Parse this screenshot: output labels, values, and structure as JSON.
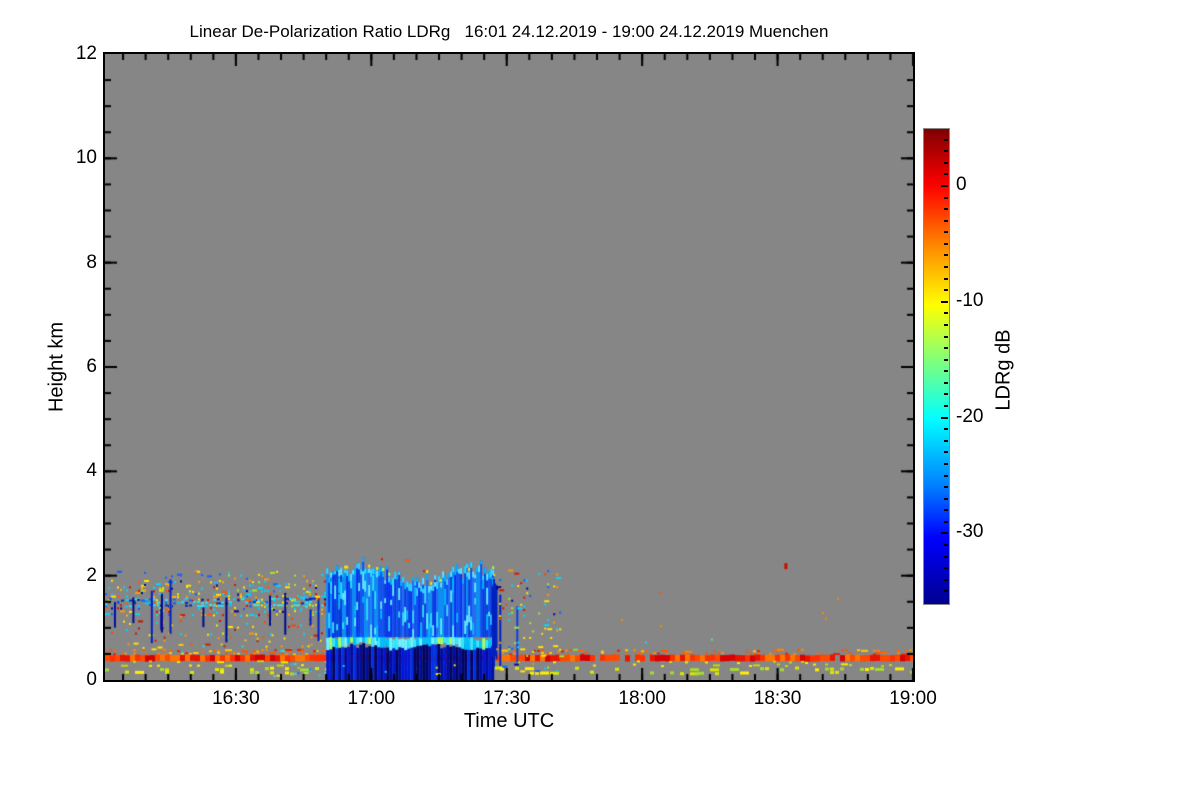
{
  "chart_data": {
    "type": "heatmap",
    "title": "Linear De-Polarization Ratio LDRg   16:01 24.12.2019 - 19:00 24.12.2019 Muenchen",
    "instrument_quantity": "Linear De-Polarization Ratio LDRg",
    "time_start": "16:01 24.12.2019",
    "time_end": "19:00 24.12.2019",
    "site": "Muenchen",
    "xlabel": "Time UTC",
    "ylabel": "Height km",
    "no_data_color": "#868686",
    "frame_color": "#000000",
    "x_axis": {
      "start_label": "16:01",
      "end_label": "19:00",
      "total_minutes": 179,
      "ticks": [
        {
          "label": "16:30",
          "minutes": 29
        },
        {
          "label": "17:00",
          "minutes": 59
        },
        {
          "label": "17:30",
          "minutes": 89
        },
        {
          "label": "18:00",
          "minutes": 119
        },
        {
          "label": "18:30",
          "minutes": 149
        },
        {
          "label": "19:00",
          "minutes": 179
        }
      ],
      "minor_start_minutes": 4,
      "minor_step_minutes": 5
    },
    "y_axis": {
      "min": 0,
      "max": 12,
      "unit": "km",
      "ticks": [
        0,
        2,
        4,
        6,
        8,
        10,
        12
      ],
      "minor_step": 0.5
    },
    "colorbar": {
      "label": "LDRg dB",
      "max_db": 5,
      "min_db": -36,
      "ticks": [
        0,
        -10,
        -20,
        -30
      ],
      "minor_step_db": 1,
      "gradient_stops": [
        [
          "0%",
          "#7f0000"
        ],
        [
          "12%",
          "#ff0000"
        ],
        [
          "25%",
          "#ff8c00"
        ],
        [
          "37%",
          "#ffff00"
        ],
        [
          "49%",
          "#7dff7d"
        ],
        [
          "61%",
          "#00ffff"
        ],
        [
          "75%",
          "#0080ff"
        ],
        [
          "86%",
          "#0000ff"
        ],
        [
          "100%",
          "#00008f"
        ]
      ]
    },
    "features": [
      {
        "id": "pre-cloud-speckle-upper",
        "type": "speckles",
        "t": [
          0,
          53
        ],
        "h": [
          1.25,
          1.9
        ],
        "density": 0.3,
        "cell": [
          3,
          3
        ],
        "colors": [
          "#ffe400",
          "#ffe400",
          "#00d8ff",
          "#00d8ff",
          "#ff9900",
          "#ff5500",
          "#1560ff",
          "#d81400",
          "#000a90",
          "#a0e838",
          "#ffb000",
          "#30b0ff"
        ]
      },
      {
        "id": "pre-cloud-speckle-top",
        "type": "speckles",
        "t": [
          0,
          53
        ],
        "h": [
          1.9,
          2.08
        ],
        "density": 0.08,
        "cell": [
          3,
          3
        ],
        "colors": [
          "#ffe400",
          "#00d8ff",
          "#ff9900",
          "#1560ff",
          "#a0e838"
        ]
      },
      {
        "id": "pre-cloud-layer-cyan",
        "type": "speckles",
        "t": [
          0,
          53
        ],
        "h": [
          1.4,
          1.56
        ],
        "density": 0.5,
        "cell": [
          4,
          3
        ],
        "colors": [
          "#00ccff",
          "#28e0ff",
          "#1060ff",
          "#0030c0",
          "#40e8d0"
        ]
      },
      {
        "id": "pre-cloud-speckle-mid",
        "type": "speckles",
        "t": [
          0,
          53
        ],
        "h": [
          0.88,
          1.25
        ],
        "density": 0.1,
        "cell": [
          3,
          3
        ],
        "colors": [
          "#ffe400",
          "#ff9900",
          "#ff4400",
          "#cc1100",
          "#00d8ff",
          "#ffe400"
        ]
      },
      {
        "id": "pre-cloud-speckle-low",
        "type": "speckles",
        "t": [
          3,
          53
        ],
        "h": [
          0.52,
          0.88
        ],
        "density": 0.13,
        "cell": [
          3,
          3
        ],
        "colors": [
          "#ff9900",
          "#ffe400",
          "#ff5500",
          "#d81800",
          "#30e0c0",
          "#ffc800"
        ]
      },
      {
        "id": "pre-cloud-navy-streaks",
        "type": "vstreaks",
        "t": [
          0,
          53
        ],
        "count": 14,
        "h": [
          0.7,
          1.95
        ],
        "colors": [
          "#000a90",
          "#0020c0",
          "#0010a8"
        ]
      },
      {
        "id": "high-stray-dots",
        "type": "speckles",
        "t": [
          0,
          80
        ],
        "h": [
          2.05,
          2.5
        ],
        "density": 0.005,
        "cell": [
          3,
          3
        ],
        "colors": [
          "#ff5500",
          "#e01000",
          "#ffd000"
        ]
      },
      {
        "id": "transition-low-speckles",
        "type": "speckles",
        "t": [
          36,
          52
        ],
        "h": [
          0.08,
          0.5
        ],
        "density": 0.17,
        "cell": [
          3,
          3
        ],
        "colors": [
          "#00d8ff",
          "#ffe400",
          "#1560ff",
          "#40e8d0",
          "#a0e838"
        ]
      },
      {
        "id": "surface-echo-upper-speckles",
        "type": "speckles",
        "t": [
          0,
          179
        ],
        "h": [
          0.48,
          0.58
        ],
        "density": 0.4,
        "cell": [
          4,
          3
        ],
        "colors": [
          "#ff8800",
          "#ff5500",
          "#e82000",
          "#ffc800",
          "#ff6600"
        ]
      },
      {
        "id": "surface-echo-line",
        "type": "hline",
        "t": [
          0,
          179
        ],
        "h": [
          0.36,
          0.48
        ],
        "cell": [
          5,
          0
        ],
        "colors": [
          "#e81400",
          "#ff4800",
          "#ff7300",
          "#d80000",
          "#ff3000"
        ]
      },
      {
        "id": "surface-yellow-dots",
        "type": "speckles",
        "t": [
          0,
          179
        ],
        "h": [
          0.28,
          0.36
        ],
        "density": 0.12,
        "cell": [
          4,
          3
        ],
        "colors": [
          "#ffe800",
          "#c8d800"
        ]
      },
      {
        "id": "near-ground-dots",
        "type": "speckles",
        "t": [
          0,
          179
        ],
        "h": [
          0.12,
          0.24
        ],
        "density": 0.18,
        "cell": [
          5,
          4
        ],
        "colors": [
          "#d8e800",
          "#a8d838",
          "#ffee00"
        ]
      },
      {
        "id": "liquid-cloud-base-navy",
        "type": "cloudbase",
        "t": [
          49,
          86
        ],
        "h": [
          0,
          0.66
        ],
        "colors": [
          "#000d9e",
          "#000d9e",
          "#0017d8",
          "#000566",
          "#0030e8"
        ]
      },
      {
        "id": "cloud-base-dots",
        "type": "speckles",
        "t": [
          50,
          86
        ],
        "h": [
          0.03,
          0.3
        ],
        "density": 0.015,
        "cell": [
          3,
          3
        ],
        "colors": [
          "#ff8800",
          "#00d8ff",
          "#ffe400"
        ]
      },
      {
        "id": "cloud-bright-band",
        "type": "band",
        "t": [
          49,
          86
        ],
        "h": [
          0.64,
          0.84
        ],
        "colors": [
          "#38e8ff",
          "#70f4ff",
          "#00c0ff",
          "#a8ff60"
        ]
      },
      {
        "id": "cloud-streaks",
        "type": "cloud",
        "t": [
          49,
          86
        ],
        "h_base": 0.82,
        "top_mean": 2.02,
        "top_var": 0.3,
        "colors": [
          "#0030ff",
          "#0a50ff",
          "#1e6bff",
          "#0090ff",
          "#0040e8"
        ],
        "top_colors": [
          "#30d8ff",
          "#60e8ff",
          "#00b8ff"
        ],
        "spark_colors": [
          "#ffe400",
          "#a0ff50"
        ]
      },
      {
        "id": "cloud-edge-navy-streaks",
        "type": "vstreaks",
        "t": [
          84,
          92
        ],
        "count": 6,
        "h": [
          0.2,
          2.0
        ],
        "colors": [
          "#000a90",
          "#0020c0",
          "#1040e0"
        ]
      },
      {
        "id": "post-cloud-speckles",
        "type": "speckles",
        "t": [
          86,
          101
        ],
        "h": [
          0.2,
          2.1
        ],
        "density": 0.12,
        "cell": [
          3,
          3
        ],
        "colors": [
          "#ffe400",
          "#ff9900",
          "#ff4400",
          "#00d8ff",
          "#1060ff",
          "#000a90",
          "#a0e838",
          "#d81800",
          "#ffe400",
          "#00d8ff"
        ]
      },
      {
        "id": "sparse-right-speckles",
        "type": "speckles",
        "t": [
          101,
          179
        ],
        "h": [
          0.45,
          1.7
        ],
        "density": 0.0035,
        "cell": [
          3,
          3
        ],
        "colors": [
          "#ffd000",
          "#ff8800",
          "#30c8ff",
          "#ff5500",
          "#60e860"
        ]
      },
      {
        "id": "isolated-red-dot",
        "type": "point",
        "t": 150.5,
        "h": 2.24,
        "size": [
          3,
          6
        ],
        "color": "#cc0a00"
      }
    ]
  }
}
